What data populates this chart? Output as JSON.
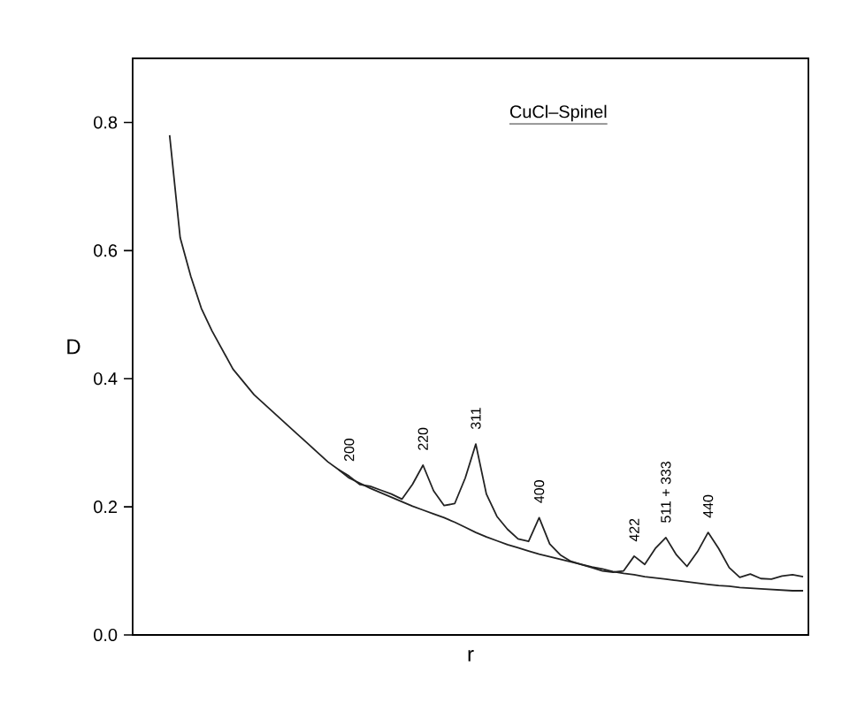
{
  "chart_data": {
    "type": "line",
    "title": "CuCl–Spinel",
    "xlabel": "r",
    "ylabel": "D",
    "categories": [
      null,
      null,
      null,
      null,
      null,
      null,
      null,
      null,
      null,
      null,
      null,
      null,
      null,
      null,
      null,
      null,
      null,
      null,
      null,
      null,
      null,
      null,
      null,
      null,
      null,
      null,
      null,
      null,
      null,
      null,
      null,
      null,
      null,
      null,
      null,
      null,
      null,
      null,
      null,
      null,
      null,
      null,
      null,
      null,
      null,
      null,
      null,
      null,
      null,
      null,
      null,
      null,
      null,
      null,
      null,
      null,
      null,
      null,
      null,
      null,
      null,
      null,
      null,
      null
    ],
    "ylim": [
      0,
      0.9
    ],
    "yticks": [
      {
        "value": 0,
        "label": "0.0"
      },
      {
        "value": 0.2,
        "label": "0.2"
      },
      {
        "value": 0.4,
        "label": "0.4"
      },
      {
        "value": 0.6,
        "label": "0.6"
      },
      {
        "value": 0.8,
        "label": "0.8"
      }
    ],
    "grid": false,
    "marker": "none",
    "line_style": "solid",
    "series": [
      {
        "color": "#222222",
        "values": [
          null,
          null,
          null,
          0.78,
          0.62,
          0.56,
          0.51,
          0.475,
          0.445,
          0.415,
          0.395,
          0.375,
          0.36,
          0.345,
          0.33,
          0.315,
          0.3,
          0.285,
          0.27,
          0.258,
          0.245,
          0.237,
          0.229,
          0.222,
          0.215,
          0.208,
          0.201,
          0.195,
          0.189,
          0.183,
          0.176,
          0.168,
          0.16,
          0.153,
          0.147,
          0.141,
          0.136,
          0.131,
          0.126,
          0.122,
          0.118,
          0.114,
          0.11,
          0.106,
          0.103,
          0.099,
          0.096,
          0.094,
          0.091,
          0.089,
          0.087,
          0.085,
          0.083,
          0.081,
          0.079,
          0.077,
          0.076,
          0.074,
          0.073,
          0.072,
          0.071,
          0.07,
          0.069,
          0.069
        ]
      },
      {
        "color": "#222222",
        "values": [
          null,
          null,
          null,
          null,
          null,
          null,
          null,
          null,
          null,
          null,
          null,
          null,
          null,
          null,
          null,
          null,
          null,
          null,
          null,
          0.258,
          0.248,
          0.235,
          0.232,
          0.226,
          0.22,
          0.212,
          0.235,
          0.265,
          0.225,
          0.202,
          0.205,
          0.245,
          0.298,
          0.22,
          0.185,
          0.165,
          0.15,
          0.146,
          0.183,
          0.142,
          0.125,
          0.115,
          0.11,
          0.105,
          0.1,
          0.098,
          0.1,
          0.123,
          0.11,
          0.135,
          0.152,
          0.125,
          0.107,
          0.13,
          0.16,
          0.135,
          0.105,
          0.09,
          0.095,
          0.088,
          0.087,
          0.092,
          0.094,
          0.091
        ]
      }
    ],
    "annotations": [
      {
        "text": "200",
        "y": 0.248
      },
      {
        "text": "220",
        "y": 0.265
      },
      {
        "text": "311",
        "y": 0.298
      },
      {
        "text": "400",
        "y": 0.183
      },
      {
        "text": "422",
        "y": 0.123
      },
      {
        "text": "511 + 333",
        "y": 0.152
      },
      {
        "text": "440",
        "y": 0.16
      }
    ]
  }
}
